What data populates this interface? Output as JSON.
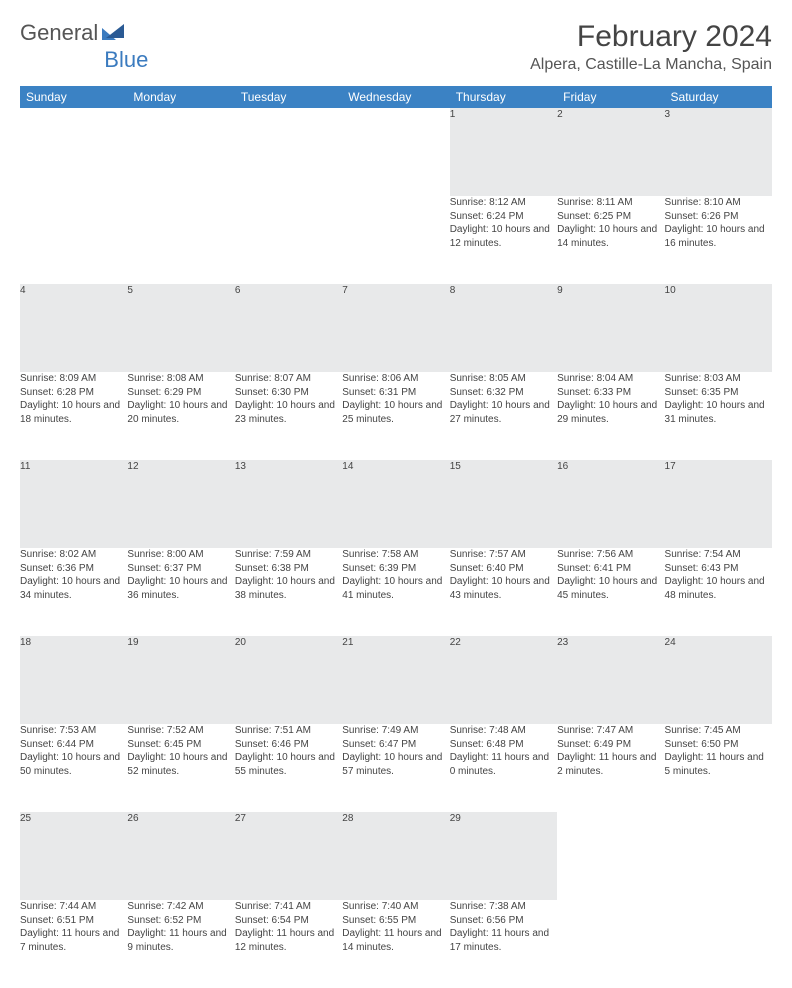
{
  "logo": {
    "text1": "General",
    "text2": "Blue"
  },
  "title": "February 2024",
  "location": "Alpera, Castille-La Mancha, Spain",
  "colors": {
    "header_bg": "#3b82c4",
    "header_fg": "#ffffff",
    "daynum_bg": "#e8e9ea",
    "rule": "#2b4a6b",
    "text": "#444444",
    "logo_gray": "#555555",
    "logo_blue": "#3b7bbf"
  },
  "day_headers": [
    "Sunday",
    "Monday",
    "Tuesday",
    "Wednesday",
    "Thursday",
    "Friday",
    "Saturday"
  ],
  "weeks": [
    {
      "nums": [
        "",
        "",
        "",
        "",
        "1",
        "2",
        "3"
      ],
      "cells": [
        "",
        "",
        "",
        "",
        "Sunrise: 8:12 AM\nSunset: 6:24 PM\nDaylight: 10 hours and 12 minutes.",
        "Sunrise: 8:11 AM\nSunset: 6:25 PM\nDaylight: 10 hours and 14 minutes.",
        "Sunrise: 8:10 AM\nSunset: 6:26 PM\nDaylight: 10 hours and 16 minutes."
      ]
    },
    {
      "nums": [
        "4",
        "5",
        "6",
        "7",
        "8",
        "9",
        "10"
      ],
      "cells": [
        "Sunrise: 8:09 AM\nSunset: 6:28 PM\nDaylight: 10 hours and 18 minutes.",
        "Sunrise: 8:08 AM\nSunset: 6:29 PM\nDaylight: 10 hours and 20 minutes.",
        "Sunrise: 8:07 AM\nSunset: 6:30 PM\nDaylight: 10 hours and 23 minutes.",
        "Sunrise: 8:06 AM\nSunset: 6:31 PM\nDaylight: 10 hours and 25 minutes.",
        "Sunrise: 8:05 AM\nSunset: 6:32 PM\nDaylight: 10 hours and 27 minutes.",
        "Sunrise: 8:04 AM\nSunset: 6:33 PM\nDaylight: 10 hours and 29 minutes.",
        "Sunrise: 8:03 AM\nSunset: 6:35 PM\nDaylight: 10 hours and 31 minutes."
      ]
    },
    {
      "nums": [
        "11",
        "12",
        "13",
        "14",
        "15",
        "16",
        "17"
      ],
      "cells": [
        "Sunrise: 8:02 AM\nSunset: 6:36 PM\nDaylight: 10 hours and 34 minutes.",
        "Sunrise: 8:00 AM\nSunset: 6:37 PM\nDaylight: 10 hours and 36 minutes.",
        "Sunrise: 7:59 AM\nSunset: 6:38 PM\nDaylight: 10 hours and 38 minutes.",
        "Sunrise: 7:58 AM\nSunset: 6:39 PM\nDaylight: 10 hours and 41 minutes.",
        "Sunrise: 7:57 AM\nSunset: 6:40 PM\nDaylight: 10 hours and 43 minutes.",
        "Sunrise: 7:56 AM\nSunset: 6:41 PM\nDaylight: 10 hours and 45 minutes.",
        "Sunrise: 7:54 AM\nSunset: 6:43 PM\nDaylight: 10 hours and 48 minutes."
      ]
    },
    {
      "nums": [
        "18",
        "19",
        "20",
        "21",
        "22",
        "23",
        "24"
      ],
      "cells": [
        "Sunrise: 7:53 AM\nSunset: 6:44 PM\nDaylight: 10 hours and 50 minutes.",
        "Sunrise: 7:52 AM\nSunset: 6:45 PM\nDaylight: 10 hours and 52 minutes.",
        "Sunrise: 7:51 AM\nSunset: 6:46 PM\nDaylight: 10 hours and 55 minutes.",
        "Sunrise: 7:49 AM\nSunset: 6:47 PM\nDaylight: 10 hours and 57 minutes.",
        "Sunrise: 7:48 AM\nSunset: 6:48 PM\nDaylight: 11 hours and 0 minutes.",
        "Sunrise: 7:47 AM\nSunset: 6:49 PM\nDaylight: 11 hours and 2 minutes.",
        "Sunrise: 7:45 AM\nSunset: 6:50 PM\nDaylight: 11 hours and 5 minutes."
      ]
    },
    {
      "nums": [
        "25",
        "26",
        "27",
        "28",
        "29",
        "",
        ""
      ],
      "cells": [
        "Sunrise: 7:44 AM\nSunset: 6:51 PM\nDaylight: 11 hours and 7 minutes.",
        "Sunrise: 7:42 AM\nSunset: 6:52 PM\nDaylight: 11 hours and 9 minutes.",
        "Sunrise: 7:41 AM\nSunset: 6:54 PM\nDaylight: 11 hours and 12 minutes.",
        "Sunrise: 7:40 AM\nSunset: 6:55 PM\nDaylight: 11 hours and 14 minutes.",
        "Sunrise: 7:38 AM\nSunset: 6:56 PM\nDaylight: 11 hours and 17 minutes.",
        "",
        ""
      ]
    }
  ]
}
